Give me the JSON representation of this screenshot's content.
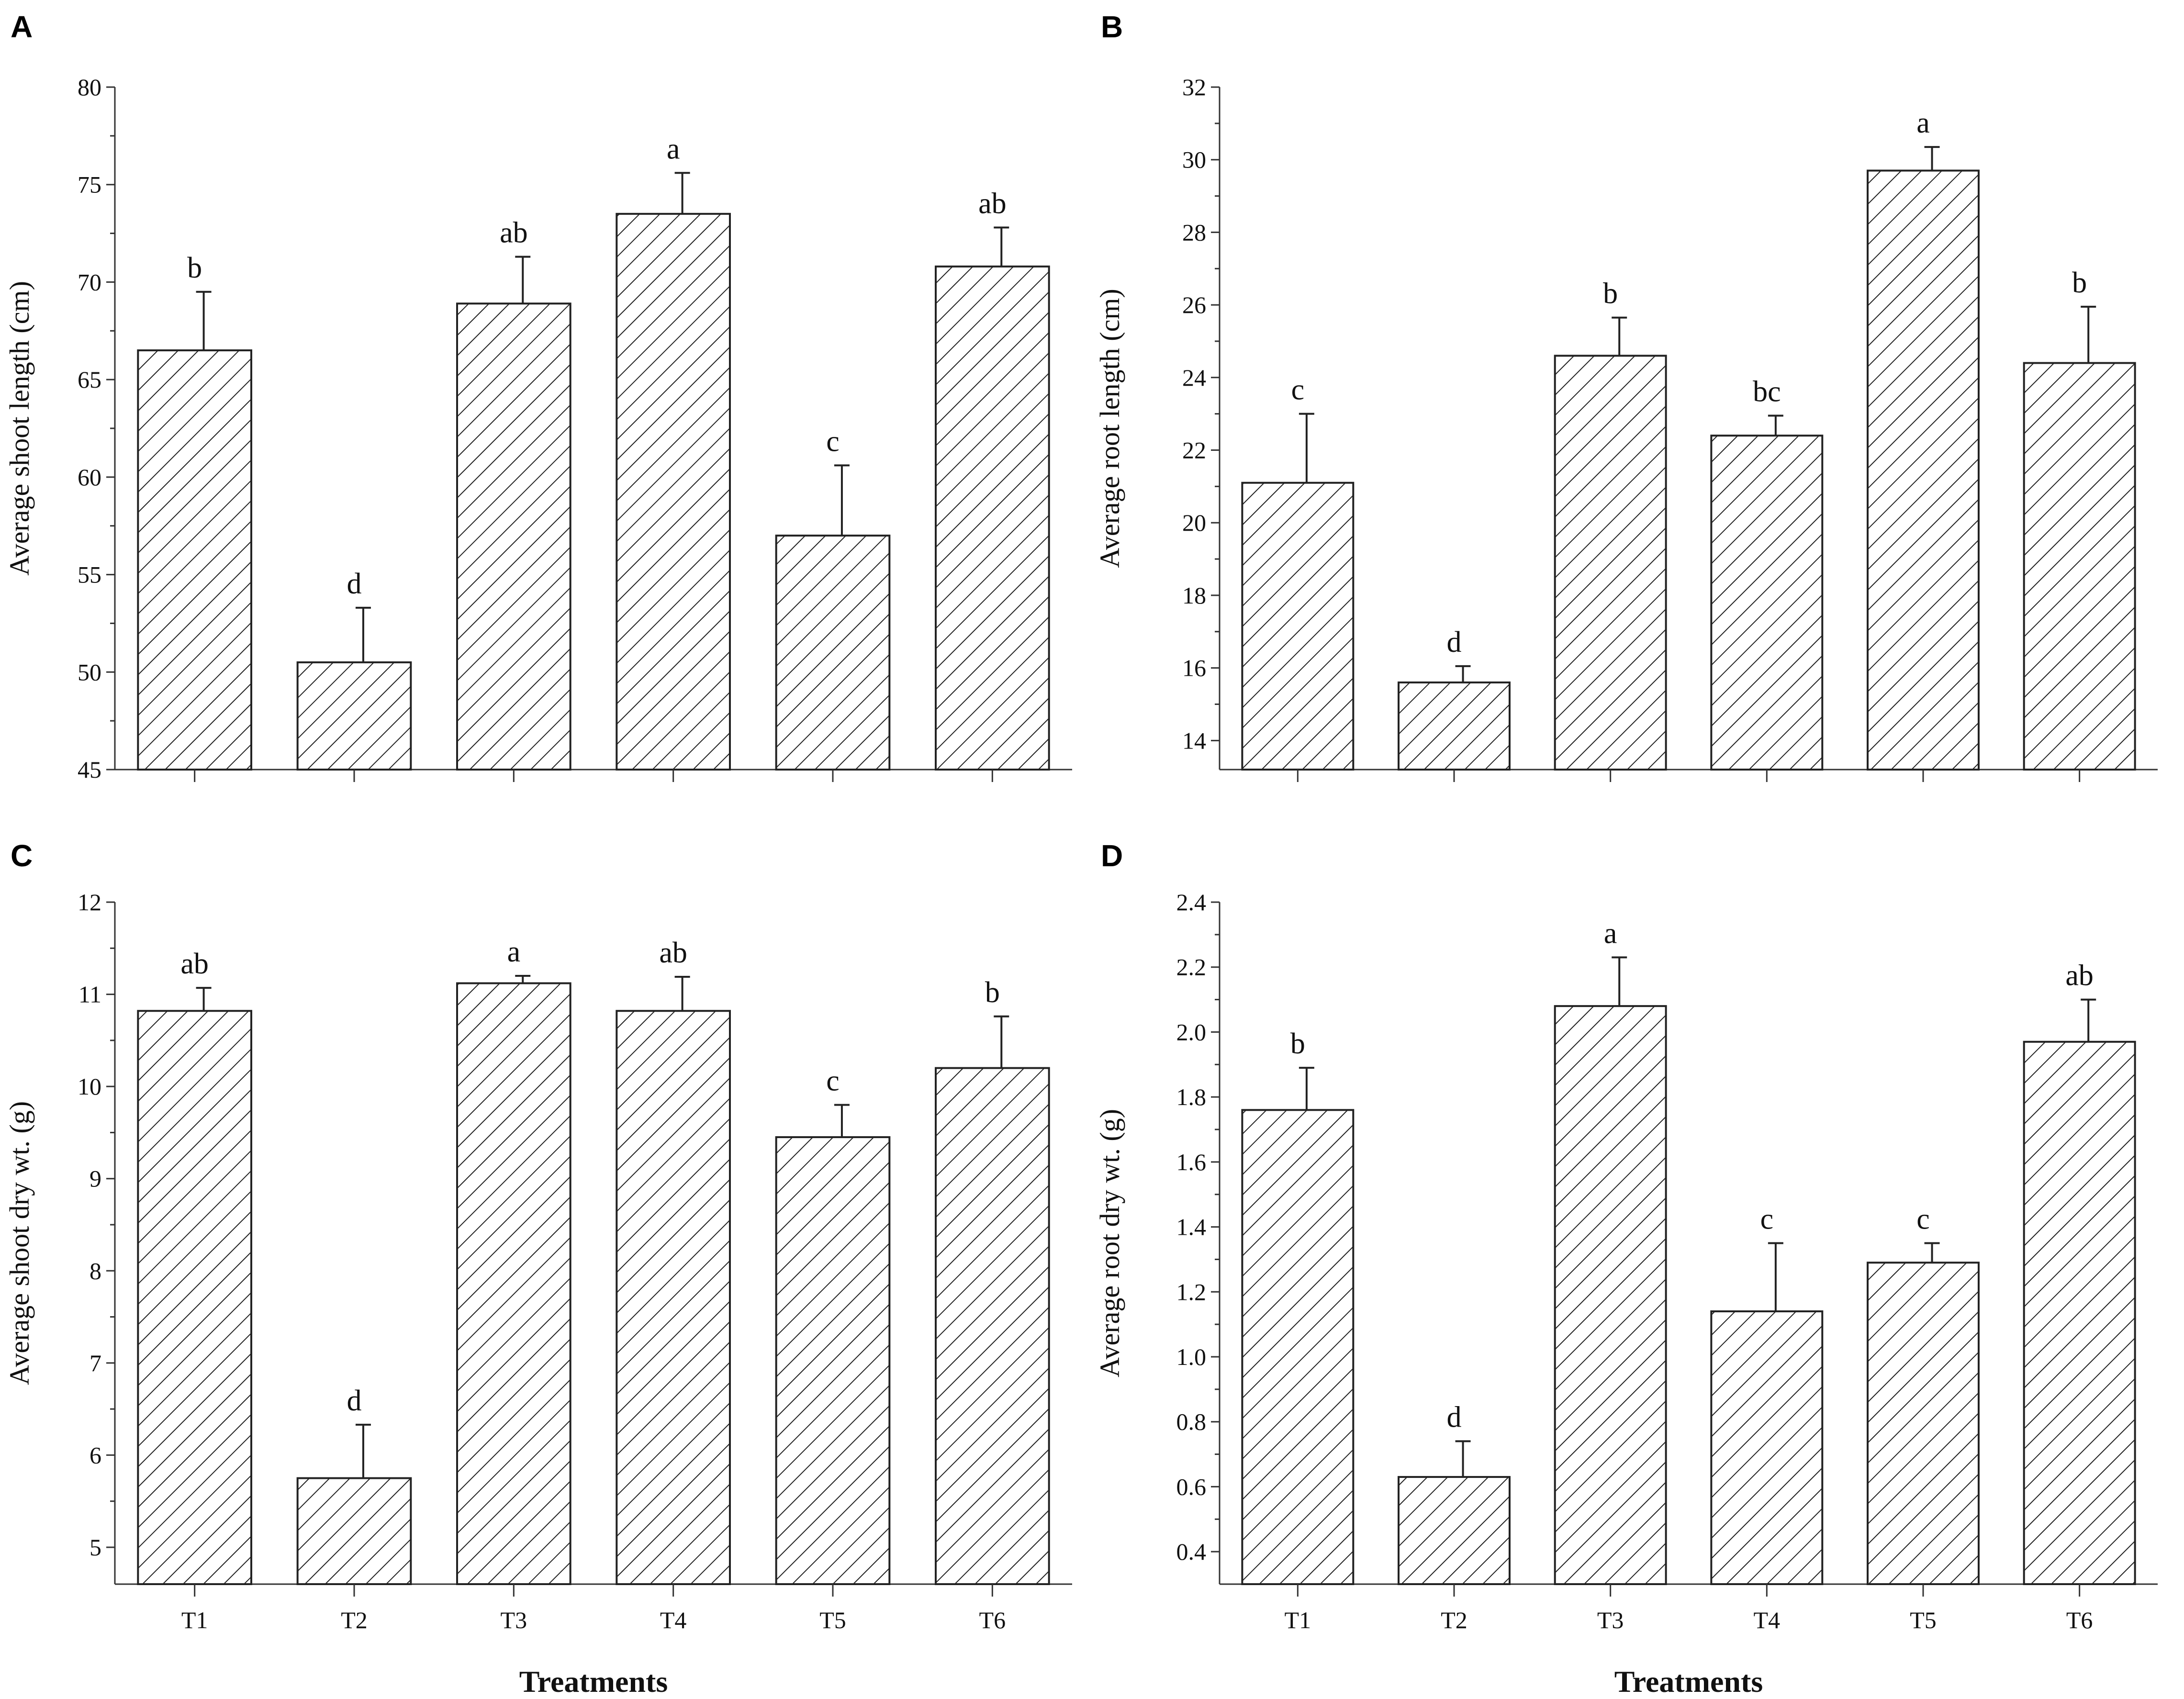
{
  "colors": {
    "bar_stroke": "#222222",
    "hatch": "#222222",
    "axis": "#333333",
    "background": "#ffffff"
  },
  "chart_data": [
    {
      "panel": "A",
      "type": "bar",
      "categories": [
        "T1",
        "T2",
        "T3",
        "T4",
        "T5",
        "T6"
      ],
      "values": [
        66.5,
        50.5,
        68.9,
        73.5,
        57.0,
        70.8
      ],
      "errors": [
        3.0,
        2.8,
        2.4,
        2.1,
        3.6,
        2.0
      ],
      "significance": [
        "b",
        "d",
        "ab",
        "a",
        "c",
        "ab"
      ],
      "ylabel": "Average shoot length (cm)",
      "xlabel": "",
      "ylim": [
        45,
        80
      ],
      "yticks": [
        45,
        50,
        55,
        60,
        65,
        70,
        75,
        80
      ],
      "ytick_labels": [
        "45",
        "50",
        "55",
        "60",
        "65",
        "70",
        "75",
        "80"
      ],
      "minor_yticks": [
        47.5,
        52.5,
        57.5,
        62.5,
        67.5,
        72.5,
        77.5
      ],
      "show_xtick_labels": false,
      "grid": false
    },
    {
      "panel": "B",
      "type": "bar",
      "categories": [
        "T1",
        "T2",
        "T3",
        "T4",
        "T5",
        "T6"
      ],
      "values": [
        21.1,
        15.6,
        24.6,
        22.4,
        29.7,
        24.4
      ],
      "errors": [
        1.9,
        0.45,
        1.05,
        0.55,
        0.65,
        1.55
      ],
      "significance": [
        "c",
        "d",
        "b",
        "bc",
        "a",
        "b"
      ],
      "ylabel": "Average root length (cm)",
      "xlabel": "",
      "ylim": [
        13.2,
        32
      ],
      "yticks": [
        14,
        16,
        18,
        20,
        22,
        24,
        26,
        28,
        30,
        32
      ],
      "ytick_labels": [
        "14",
        "16",
        "18",
        "20",
        "22",
        "24",
        "26",
        "28",
        "30",
        "32"
      ],
      "minor_yticks": [
        15,
        17,
        19,
        21,
        23,
        25,
        27,
        29,
        31
      ],
      "show_xtick_labels": false,
      "grid": false
    },
    {
      "panel": "C",
      "type": "bar",
      "categories": [
        "T1",
        "T2",
        "T3",
        "T4",
        "T5",
        "T6"
      ],
      "values": [
        10.82,
        5.75,
        11.12,
        10.82,
        9.45,
        10.2
      ],
      "errors": [
        0.25,
        0.58,
        0.08,
        0.37,
        0.35,
        0.56
      ],
      "significance": [
        "ab",
        "d",
        "a",
        "ab",
        "c",
        "b"
      ],
      "ylabel": "Average shoot dry wt. (g)",
      "xlabel": "Treatments",
      "ylim": [
        4.6,
        12
      ],
      "yticks": [
        5,
        6,
        7,
        8,
        9,
        10,
        11,
        12
      ],
      "ytick_labels": [
        "5",
        "6",
        "7",
        "8",
        "9",
        "10",
        "11",
        "12"
      ],
      "minor_yticks": [
        5.5,
        6.5,
        7.5,
        8.5,
        9.5,
        10.5,
        11.5
      ],
      "show_xtick_labels": true,
      "grid": false
    },
    {
      "panel": "D",
      "type": "bar",
      "categories": [
        "T1",
        "T2",
        "T3",
        "T4",
        "T5",
        "T6"
      ],
      "values": [
        1.76,
        0.63,
        2.08,
        1.14,
        1.29,
        1.97
      ],
      "errors": [
        0.13,
        0.11,
        0.15,
        0.21,
        0.06,
        0.13
      ],
      "significance": [
        "b",
        "d",
        "a",
        "c",
        "c",
        "ab"
      ],
      "ylabel": "Average root dry wt. (g)",
      "xlabel": "Treatments",
      "ylim": [
        0.3,
        2.4
      ],
      "yticks": [
        0.4,
        0.6,
        0.8,
        1.0,
        1.2,
        1.4,
        1.6,
        1.8,
        2.0,
        2.2,
        2.4
      ],
      "ytick_labels": [
        "0.4",
        "0.6",
        "0.8",
        "1.0",
        "1.2",
        "1.4",
        "1.6",
        "1.8",
        "2.0",
        "2.2",
        "2.4"
      ],
      "minor_yticks": [
        0.5,
        0.7,
        0.9,
        1.1,
        1.3,
        1.5,
        1.7,
        1.9,
        2.1,
        2.3
      ],
      "show_xtick_labels": true,
      "grid": false
    }
  ]
}
